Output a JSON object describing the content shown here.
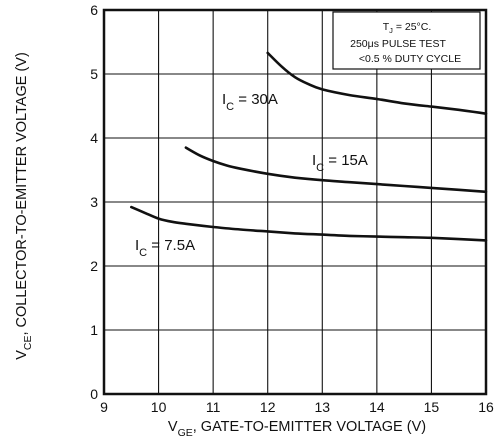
{
  "chart_data": {
    "type": "line",
    "title": "",
    "xlabel": {
      "main": "V",
      "sub": "GE",
      "rest": ", GATE-TO-EMITTER VOLTAGE (V)"
    },
    "ylabel": {
      "main": "V",
      "sub": "CE",
      "rest": ", COLLECTOR-TO-EMITTER VOLTAGE (V)"
    },
    "xlim": [
      9,
      16
    ],
    "ylim": [
      0,
      6
    ],
    "xticks": [
      "9",
      "10",
      "11",
      "12",
      "13",
      "14",
      "15",
      "16"
    ],
    "yticks": [
      "0",
      "1",
      "2",
      "3",
      "4",
      "5",
      "6"
    ],
    "grid": true,
    "legend": "none",
    "annotation_box": {
      "line1": {
        "main": "T",
        "sub": "J",
        "rest": " = 25°C."
      },
      "line2": "250μs PULSE TEST",
      "line3": "<0.5 % DUTY CYCLE"
    },
    "series": [
      {
        "label": {
          "main": "I",
          "sub": "C",
          "rest": " = 30A"
        },
        "x": [
          12.0,
          12.25,
          12.5,
          12.75,
          13.0,
          13.5,
          14.0,
          14.5,
          15.0,
          15.5,
          16.0
        ],
        "y": [
          5.33,
          5.12,
          4.95,
          4.84,
          4.76,
          4.67,
          4.61,
          4.54,
          4.49,
          4.44,
          4.38
        ]
      },
      {
        "label": {
          "main": "I",
          "sub": "C",
          "rest": " = 15A"
        },
        "x": [
          10.5,
          10.75,
          11.0,
          11.25,
          11.5,
          12.0,
          12.5,
          13.0,
          13.5,
          14.0,
          14.5,
          15.0,
          15.5,
          16.0
        ],
        "y": [
          3.85,
          3.73,
          3.64,
          3.57,
          3.52,
          3.44,
          3.38,
          3.34,
          3.31,
          3.28,
          3.25,
          3.22,
          3.19,
          3.16
        ]
      },
      {
        "label": {
          "main": "I",
          "sub": "C",
          "rest": " = 7.5A"
        },
        "x": [
          9.5,
          9.75,
          10.0,
          10.25,
          10.5,
          11.0,
          11.5,
          12.0,
          12.5,
          13.0,
          13.5,
          14.0,
          14.5,
          15.0,
          15.5,
          16.0
        ],
        "y": [
          2.92,
          2.83,
          2.74,
          2.69,
          2.66,
          2.61,
          2.57,
          2.54,
          2.51,
          2.49,
          2.47,
          2.46,
          2.45,
          2.44,
          2.42,
          2.4
        ]
      }
    ]
  }
}
